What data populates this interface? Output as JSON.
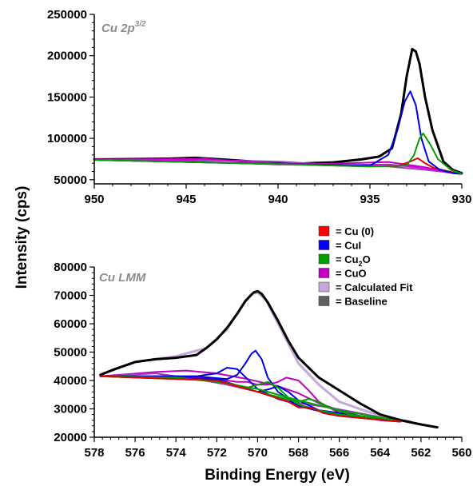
{
  "chart_data": [
    {
      "type": "line",
      "panel_label": "Cu 2p",
      "panel_label_sup": "3/2",
      "x_reversed": true,
      "xlim": [
        950,
        930
      ],
      "ylim": [
        45000,
        250000
      ],
      "xticks": [
        950,
        945,
        940,
        935,
        930
      ],
      "yticks": [
        50000,
        100000,
        150000,
        200000,
        250000
      ],
      "series": [
        {
          "color": "#000000",
          "x": [
            950,
            948,
            946,
            944.5,
            943,
            941,
            939,
            937,
            935.5,
            934.5,
            933.8,
            933.3,
            933,
            932.7,
            932.5,
            932.3,
            932,
            931.6,
            931,
            930.5,
            930
          ],
          "y": [
            74500,
            75000,
            75500,
            76500,
            74500,
            71500,
            69500,
            71000,
            74500,
            78000,
            88000,
            130000,
            175000,
            208000,
            205000,
            190000,
            150000,
            110000,
            72000,
            62000,
            58000
          ]
        },
        {
          "color": "#9e3cc6",
          "x": [
            950,
            945,
            940,
            937,
            934,
            932,
            930
          ],
          "y": [
            74000,
            74500,
            72000,
            68000,
            66000,
            62000,
            57000
          ]
        },
        {
          "color": "#c000c0",
          "x": [
            950,
            946,
            944,
            942,
            940,
            938,
            936,
            934,
            932,
            930
          ],
          "y": [
            74500,
            75000,
            75500,
            72000,
            69500,
            69000,
            70000,
            71500,
            65000,
            57000
          ]
        },
        {
          "color": "#e000e0",
          "x": [
            950,
            946,
            944,
            942,
            940,
            938,
            936,
            934,
            932,
            930
          ],
          "y": [
            74000,
            74000,
            72000,
            70000,
            68500,
            68000,
            68000,
            68500,
            64000,
            57000
          ]
        },
        {
          "color": "#e00000",
          "x": [
            950,
            940,
            935,
            933.5,
            932.8,
            932.4,
            932,
            931.5,
            930.5,
            930
          ],
          "y": [
            74000,
            69000,
            66000,
            66500,
            72000,
            76000,
            70000,
            64000,
            59000,
            57000
          ]
        },
        {
          "color": "#0000e0",
          "x": [
            950,
            940,
            935,
            934,
            933.5,
            933.1,
            932.8,
            932.5,
            932.2,
            931.8,
            931.2,
            930.5,
            930
          ],
          "y": [
            74000,
            69000,
            67000,
            80000,
            110000,
            145000,
            157000,
            140000,
            100000,
            72000,
            62000,
            58000,
            57000
          ]
        },
        {
          "color": "#00a000",
          "x": [
            950,
            940,
            935,
            933,
            932.6,
            932.3,
            932.1,
            931.7,
            931.3,
            930.6,
            930
          ],
          "y": [
            74000,
            69000,
            66000,
            67000,
            80000,
            100000,
            106000,
            92000,
            75000,
            62000,
            57000
          ]
        }
      ]
    },
    {
      "type": "line",
      "panel_label": "Cu LMM",
      "x_reversed": true,
      "xlim": [
        578,
        560
      ],
      "ylim": [
        20000,
        80000
      ],
      "xticks": [
        578,
        576,
        574,
        572,
        570,
        568,
        566,
        564,
        562,
        560
      ],
      "yticks": [
        20000,
        30000,
        40000,
        50000,
        60000,
        70000,
        80000
      ],
      "series": [
        {
          "color": "#c8a8dc",
          "x": [
            577.7,
            576,
            574,
            572.5,
            571.5,
            570.8,
            570.3,
            570,
            569.6,
            569,
            568,
            567,
            566,
            564,
            562.5
          ],
          "y": [
            42000,
            46500,
            48500,
            51500,
            58000,
            66000,
            70500,
            71000,
            68500,
            60000,
            46000,
            38500,
            32500,
            27500,
            25500
          ]
        },
        {
          "color": "#000000",
          "x": [
            577.7,
            577,
            576,
            575,
            574,
            573,
            572.5,
            572,
            571.5,
            571,
            570.6,
            570.2,
            570,
            569.8,
            569.5,
            569,
            568.5,
            568,
            567,
            566,
            565,
            564,
            563,
            562,
            561.2
          ],
          "y": [
            42000,
            44000,
            46500,
            47500,
            48000,
            49000,
            51500,
            54500,
            58500,
            63500,
            68000,
            71000,
            71500,
            70500,
            67500,
            61000,
            54000,
            48000,
            41000,
            36500,
            32000,
            28000,
            26000,
            24500,
            23500
          ]
        },
        {
          "color": "#c000c0",
          "x": [
            577.7,
            575,
            573.5,
            572,
            570.5,
            569,
            568,
            567,
            566,
            565,
            563
          ],
          "y": [
            41500,
            43000,
            43500,
            42500,
            40500,
            38000,
            35500,
            32000,
            29500,
            27500,
            25500
          ]
        },
        {
          "color": "#c000c0",
          "x": [
            577.7,
            574,
            572,
            571,
            570.5,
            570,
            569.5,
            569,
            568.6,
            568,
            567.5,
            567,
            566,
            564,
            563
          ],
          "y": [
            41500,
            41500,
            40500,
            39500,
            39500,
            38500,
            38500,
            39500,
            41000,
            40000,
            36500,
            32500,
            28500,
            26000,
            25500
          ]
        },
        {
          "color": "#9e3cc6",
          "x": [
            577.7,
            575,
            573,
            571.5,
            570,
            568,
            566.5,
            565,
            563
          ],
          "y": [
            41500,
            42500,
            40500,
            38500,
            36000,
            32000,
            30500,
            28500,
            25500
          ]
        },
        {
          "color": "#0000e0",
          "x": [
            577.7,
            573,
            571.5,
            571,
            570.6,
            570.3,
            570.1,
            569.8,
            569.5,
            569,
            568,
            566,
            563
          ],
          "y": [
            41500,
            41500,
            40500,
            42000,
            46000,
            49500,
            50500,
            47500,
            41000,
            36000,
            31000,
            27500,
            25500
          ]
        },
        {
          "color": "#0000e0",
          "x": [
            577.7,
            573,
            572,
            571.5,
            571,
            570.5,
            570,
            569,
            567,
            563
          ],
          "y": [
            41500,
            41500,
            42500,
            44500,
            44000,
            40500,
            37000,
            33500,
            29500,
            25500
          ]
        },
        {
          "color": "#0000e0",
          "x": [
            577.7,
            572,
            570,
            569.4,
            569,
            568.5,
            568,
            567,
            563
          ],
          "y": [
            41500,
            40500,
            36000,
            37000,
            38000,
            36000,
            33000,
            29500,
            25500
          ]
        },
        {
          "color": "#00a000",
          "x": [
            577.7,
            572,
            570.5,
            570,
            569.5,
            569,
            568.5,
            568,
            567,
            566,
            563
          ],
          "y": [
            41500,
            40000,
            37500,
            38500,
            39500,
            37500,
            34000,
            31500,
            29500,
            28000,
            25500
          ]
        },
        {
          "color": "#00a000",
          "x": [
            577.7,
            572,
            570,
            568,
            567.5,
            567,
            566.5,
            565.5,
            563
          ],
          "y": [
            41500,
            40000,
            36000,
            32500,
            33500,
            32500,
            30500,
            28000,
            25500
          ]
        },
        {
          "color": "#00a000",
          "x": [
            577.7,
            574,
            572,
            570,
            568,
            566,
            564,
            563
          ],
          "y": [
            41500,
            41000,
            39500,
            37000,
            33000,
            29500,
            27000,
            25500
          ]
        },
        {
          "color": "#e00000",
          "x": [
            577.7,
            572,
            570,
            568.5,
            568,
            567.6,
            567.2,
            566.8,
            566,
            563
          ],
          "y": [
            41500,
            40000,
            36000,
            32500,
            30500,
            30500,
            30000,
            28500,
            27500,
            25500
          ]
        }
      ]
    }
  ],
  "shared": {
    "ylabel": "Intensity (cps)",
    "xlabel": "Binding Energy (eV)"
  },
  "legend": {
    "items": [
      {
        "color": "#ff0000",
        "label": "= Cu (0)"
      },
      {
        "color": "#0000ff",
        "label": "= CuI"
      },
      {
        "color": "#00a000",
        "label": "= Cu",
        "sub": "2",
        "after": "O"
      },
      {
        "color": "#c000c0",
        "label": "= CuO"
      },
      {
        "color": "#c8a8dc",
        "label": "= Calculated Fit"
      },
      {
        "color": "#606060",
        "label": "= Baseline"
      }
    ]
  }
}
